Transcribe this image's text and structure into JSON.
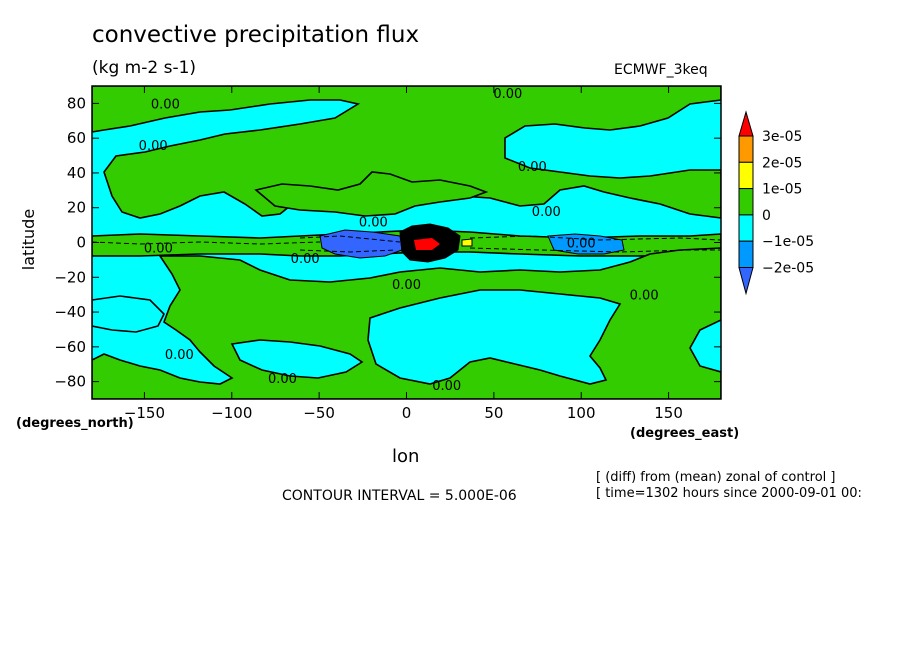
{
  "chart_data": {
    "type": "heatmap",
    "title": "convective precipitation flux",
    "units": "(kg m-2 s-1)",
    "dataset": "ECMWF_3keq",
    "xlabel": "lon",
    "ylabel": "latitude",
    "x_unit": "(degrees_east)",
    "y_unit": "(degrees_north)",
    "xlim": [
      -180,
      180
    ],
    "ylim": [
      -90,
      90
    ],
    "x_ticks": [
      -150,
      -100,
      -50,
      0,
      50,
      100,
      150
    ],
    "y_ticks": [
      -80,
      -60,
      -40,
      -20,
      0,
      20,
      40,
      60,
      80
    ],
    "contour_interval": "CONTOUR INTERVAL = 5.000E-06",
    "notes": [
      "[ (diff) from (mean) zonal of control ]",
      "[ time=1302 hours since 2000-09-01 00:"
    ],
    "colorbar": {
      "labels": [
        "3e-05",
        "2e-05",
        "1e-05",
        "0",
        "-1e-05",
        "-2e-05"
      ],
      "colors": [
        "#ff0000",
        "#ff9900",
        "#ffff00",
        "#33cc00",
        "#00ffff",
        "#0099ff",
        "#3366ff"
      ]
    },
    "contour_labels": [
      {
        "text": "0.00",
        "lon": -138,
        "lat": 80
      },
      {
        "text": "0.00",
        "lon": 58,
        "lat": 86
      },
      {
        "text": "0.00",
        "lon": -145,
        "lat": 56
      },
      {
        "text": "0.00",
        "lon": 72,
        "lat": 44
      },
      {
        "text": "0.00",
        "lon": 80,
        "lat": 18
      },
      {
        "text": "0.00",
        "lon": -19,
        "lat": 12
      },
      {
        "text": "0.00",
        "lon": -142,
        "lat": -3
      },
      {
        "text": "0.00",
        "lon": -58,
        "lat": -9
      },
      {
        "text": "0.00",
        "lon": 100,
        "lat": 0
      },
      {
        "text": "0.00",
        "lon": 0,
        "lat": -24
      },
      {
        "text": "0.00",
        "lon": 136,
        "lat": -30
      },
      {
        "text": "0.00",
        "lon": -130,
        "lat": -64
      },
      {
        "text": "0.00",
        "lon": -71,
        "lat": -78
      },
      {
        "text": "0.00",
        "lon": 23,
        "lat": -82
      }
    ]
  }
}
